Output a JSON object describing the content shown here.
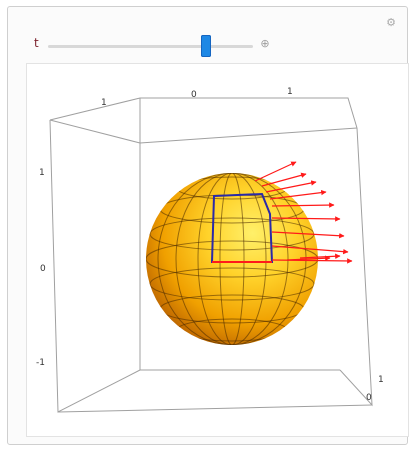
{
  "controls": {
    "parameter_label": "t",
    "slider_value_fraction": 0.77,
    "gear_icon": "gear-icon",
    "plus_icon": "plus-icon"
  },
  "plot": {
    "top_axis_ticks": [
      "1",
      "0",
      "1"
    ],
    "left_axis_ticks": [
      "1",
      "0",
      "-1"
    ],
    "right_axis_ticks": [
      "1",
      "0"
    ],
    "colors": {
      "sphere_light": "#ffe45c",
      "sphere_dark": "#b85a00",
      "mesh": "#4a2a00",
      "patch_outline": "#2a2aa8",
      "arrows": "#ff1a1a",
      "box_lines": "#a0a0a0"
    }
  }
}
